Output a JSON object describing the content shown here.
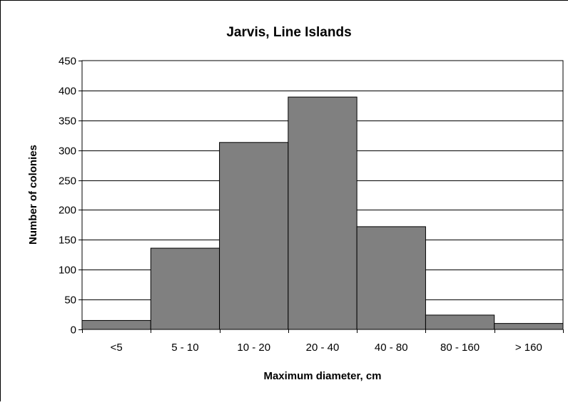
{
  "chart_data": {
    "type": "bar",
    "title": "Jarvis, Line Islands",
    "xlabel": "Maximum diameter, cm",
    "ylabel": "Number of colonies",
    "categories": [
      "<5",
      "5 - 10",
      "10 - 20",
      "20 - 40",
      "40 - 80",
      "80 - 160",
      "> 160"
    ],
    "values": [
      15,
      136,
      313,
      389,
      172,
      24,
      10
    ],
    "ylim": [
      0,
      450
    ],
    "yticks": [
      0,
      50,
      100,
      150,
      200,
      250,
      300,
      350,
      400,
      450
    ],
    "grid": true,
    "legend": "none",
    "bar_color": "#808080",
    "bar_edge_color": "#000000"
  }
}
